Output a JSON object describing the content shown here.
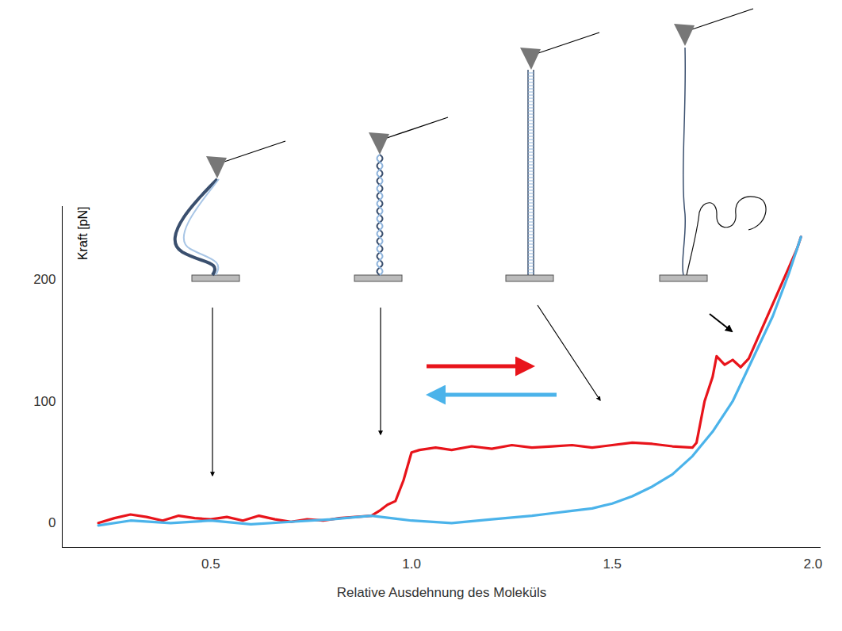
{
  "chart_data": {
    "type": "line",
    "xlabel": "Relative Ausdehnung des Moleküls",
    "ylabel": "Kraft [pN]",
    "xlim": [
      0.13,
      2.02
    ],
    "ylim": [
      -20,
      260
    ],
    "xticks": [
      0.5,
      {
        "value": 1,
        "label": "1.0"
      },
      1.5,
      {
        "value": 2,
        "label": "2.0"
      }
    ],
    "yticks": [
      0,
      100,
      200
    ],
    "grid": false,
    "series": [
      {
        "color": "#e8141b",
        "x": [
          0.22,
          0.26,
          0.3,
          0.34,
          0.38,
          0.42,
          0.46,
          0.5,
          0.54,
          0.58,
          0.62,
          0.66,
          0.7,
          0.74,
          0.78,
          0.82,
          0.86,
          0.9,
          0.92,
          0.94,
          0.96,
          0.98,
          1.0,
          1.02,
          1.06,
          1.1,
          1.15,
          1.2,
          1.25,
          1.3,
          1.35,
          1.4,
          1.45,
          1.5,
          1.55,
          1.6,
          1.65,
          1.7,
          1.71,
          1.73,
          1.75,
          1.76,
          1.78,
          1.8,
          1.82,
          1.84,
          1.86,
          1.88,
          1.9,
          1.92,
          1.94,
          1.96,
          1.97
        ],
        "values": [
          0,
          4,
          7,
          5,
          2,
          6,
          4,
          3,
          5,
          2,
          6,
          3,
          1,
          3,
          2,
          4,
          5,
          6,
          10,
          15,
          18,
          35,
          58,
          60,
          62,
          60,
          63,
          61,
          64,
          62,
          63,
          64,
          62,
          64,
          66,
          65,
          63,
          62,
          66,
          100,
          120,
          137,
          130,
          134,
          128,
          135,
          150,
          165,
          180,
          195,
          210,
          225,
          235
        ]
      },
      {
        "color": "#4bb3ea",
        "x": [
          0.22,
          0.3,
          0.4,
          0.5,
          0.6,
          0.7,
          0.8,
          0.9,
          1.0,
          1.1,
          1.2,
          1.3,
          1.35,
          1.4,
          1.45,
          1.5,
          1.55,
          1.6,
          1.65,
          1.7,
          1.75,
          1.8,
          1.85,
          1.9,
          1.94,
          1.97
        ],
        "values": [
          -2,
          2,
          0,
          2,
          -1,
          1,
          3,
          6,
          2,
          0,
          3,
          6,
          8,
          10,
          12,
          16,
          22,
          30,
          40,
          55,
          75,
          100,
          135,
          170,
          205,
          235
        ]
      }
    ]
  }
}
